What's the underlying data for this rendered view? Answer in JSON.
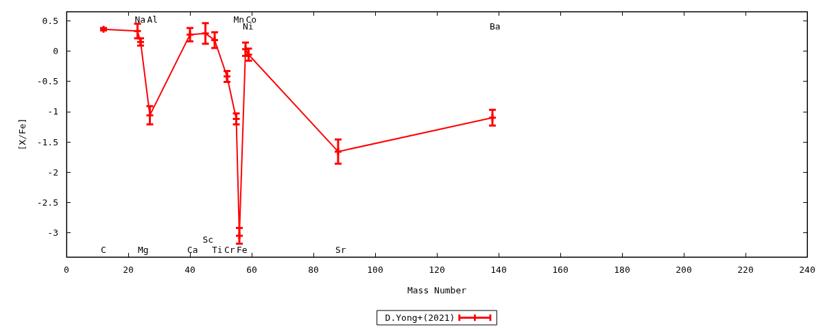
{
  "chart_data": {
    "type": "line",
    "xlabel": "Mass Number",
    "ylabel": "[X/Fe]",
    "x": [
      12,
      23,
      24,
      27,
      40,
      45,
      48,
      52,
      55,
      56,
      58,
      59,
      88,
      138
    ],
    "series": [
      {
        "name": "D.Yong+(2021)",
        "color": "#ff0000",
        "values": [
          0.36,
          0.33,
          0.15,
          -1.06,
          0.27,
          0.29,
          0.18,
          -0.42,
          -1.12,
          -3.05,
          0.03,
          -0.06,
          -1.66,
          -1.1
        ],
        "errors": [
          0.02,
          0.12,
          0.06,
          0.15,
          0.11,
          0.17,
          0.13,
          0.09,
          0.09,
          0.13,
          0.11,
          0.1,
          0.2,
          0.13
        ]
      }
    ],
    "xlim": [
      0,
      240
    ],
    "xticks": [
      0,
      20,
      40,
      60,
      80,
      100,
      120,
      140,
      160,
      180,
      200,
      220,
      240
    ],
    "ylim": [
      -3.4,
      0.65
    ],
    "yticks": [
      -3,
      -2.5,
      -2,
      -1.5,
      -1,
      -0.5,
      0,
      0.5
    ],
    "grid": false,
    "legend": "bottom",
    "marker": "cross",
    "line_style": "solid",
    "annotations": [
      "C",
      "Na",
      "Mg",
      "Al",
      "Ca",
      "Sc",
      "Ti",
      "Cr",
      "Mn",
      "Fe",
      "Ni",
      "Co",
      "Sr",
      "Ba"
    ]
  }
}
